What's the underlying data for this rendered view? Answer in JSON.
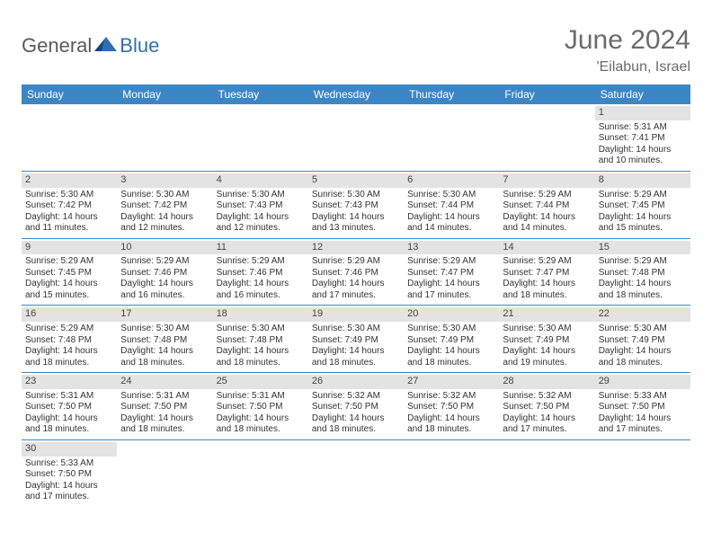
{
  "brand": {
    "general": "General",
    "blue": "Blue"
  },
  "title": "June 2024",
  "location": "'Eilabun, Israel",
  "colors": {
    "header_bar": "#3d86c6",
    "daynum_bg": "#e3e3e3",
    "text": "#333333",
    "title_text": "#6b6b6b",
    "logo_gray": "#5a5a5a",
    "logo_blue": "#2f6fad",
    "divider": "#3d86c6",
    "background": "#ffffff"
  },
  "typography": {
    "title_fontsize": 30,
    "location_fontsize": 16,
    "dow_fontsize": 12,
    "daynum_fontsize": 11,
    "cell_fontsize": 10
  },
  "dow": [
    "Sunday",
    "Monday",
    "Tuesday",
    "Wednesday",
    "Thursday",
    "Friday",
    "Saturday"
  ],
  "weeks": [
    [
      null,
      null,
      null,
      null,
      null,
      null,
      {
        "n": "1",
        "sr": "Sunrise: 5:31 AM",
        "ss": "Sunset: 7:41 PM",
        "d1": "Daylight: 14 hours",
        "d2": "and 10 minutes."
      }
    ],
    [
      {
        "n": "2",
        "sr": "Sunrise: 5:30 AM",
        "ss": "Sunset: 7:42 PM",
        "d1": "Daylight: 14 hours",
        "d2": "and 11 minutes."
      },
      {
        "n": "3",
        "sr": "Sunrise: 5:30 AM",
        "ss": "Sunset: 7:42 PM",
        "d1": "Daylight: 14 hours",
        "d2": "and 12 minutes."
      },
      {
        "n": "4",
        "sr": "Sunrise: 5:30 AM",
        "ss": "Sunset: 7:43 PM",
        "d1": "Daylight: 14 hours",
        "d2": "and 12 minutes."
      },
      {
        "n": "5",
        "sr": "Sunrise: 5:30 AM",
        "ss": "Sunset: 7:43 PM",
        "d1": "Daylight: 14 hours",
        "d2": "and 13 minutes."
      },
      {
        "n": "6",
        "sr": "Sunrise: 5:30 AM",
        "ss": "Sunset: 7:44 PM",
        "d1": "Daylight: 14 hours",
        "d2": "and 14 minutes."
      },
      {
        "n": "7",
        "sr": "Sunrise: 5:29 AM",
        "ss": "Sunset: 7:44 PM",
        "d1": "Daylight: 14 hours",
        "d2": "and 14 minutes."
      },
      {
        "n": "8",
        "sr": "Sunrise: 5:29 AM",
        "ss": "Sunset: 7:45 PM",
        "d1": "Daylight: 14 hours",
        "d2": "and 15 minutes."
      }
    ],
    [
      {
        "n": "9",
        "sr": "Sunrise: 5:29 AM",
        "ss": "Sunset: 7:45 PM",
        "d1": "Daylight: 14 hours",
        "d2": "and 15 minutes."
      },
      {
        "n": "10",
        "sr": "Sunrise: 5:29 AM",
        "ss": "Sunset: 7:46 PM",
        "d1": "Daylight: 14 hours",
        "d2": "and 16 minutes."
      },
      {
        "n": "11",
        "sr": "Sunrise: 5:29 AM",
        "ss": "Sunset: 7:46 PM",
        "d1": "Daylight: 14 hours",
        "d2": "and 16 minutes."
      },
      {
        "n": "12",
        "sr": "Sunrise: 5:29 AM",
        "ss": "Sunset: 7:46 PM",
        "d1": "Daylight: 14 hours",
        "d2": "and 17 minutes."
      },
      {
        "n": "13",
        "sr": "Sunrise: 5:29 AM",
        "ss": "Sunset: 7:47 PM",
        "d1": "Daylight: 14 hours",
        "d2": "and 17 minutes."
      },
      {
        "n": "14",
        "sr": "Sunrise: 5:29 AM",
        "ss": "Sunset: 7:47 PM",
        "d1": "Daylight: 14 hours",
        "d2": "and 18 minutes."
      },
      {
        "n": "15",
        "sr": "Sunrise: 5:29 AM",
        "ss": "Sunset: 7:48 PM",
        "d1": "Daylight: 14 hours",
        "d2": "and 18 minutes."
      }
    ],
    [
      {
        "n": "16",
        "sr": "Sunrise: 5:29 AM",
        "ss": "Sunset: 7:48 PM",
        "d1": "Daylight: 14 hours",
        "d2": "and 18 minutes."
      },
      {
        "n": "17",
        "sr": "Sunrise: 5:30 AM",
        "ss": "Sunset: 7:48 PM",
        "d1": "Daylight: 14 hours",
        "d2": "and 18 minutes."
      },
      {
        "n": "18",
        "sr": "Sunrise: 5:30 AM",
        "ss": "Sunset: 7:48 PM",
        "d1": "Daylight: 14 hours",
        "d2": "and 18 minutes."
      },
      {
        "n": "19",
        "sr": "Sunrise: 5:30 AM",
        "ss": "Sunset: 7:49 PM",
        "d1": "Daylight: 14 hours",
        "d2": "and 18 minutes."
      },
      {
        "n": "20",
        "sr": "Sunrise: 5:30 AM",
        "ss": "Sunset: 7:49 PM",
        "d1": "Daylight: 14 hours",
        "d2": "and 18 minutes."
      },
      {
        "n": "21",
        "sr": "Sunrise: 5:30 AM",
        "ss": "Sunset: 7:49 PM",
        "d1": "Daylight: 14 hours",
        "d2": "and 19 minutes."
      },
      {
        "n": "22",
        "sr": "Sunrise: 5:30 AM",
        "ss": "Sunset: 7:49 PM",
        "d1": "Daylight: 14 hours",
        "d2": "and 18 minutes."
      }
    ],
    [
      {
        "n": "23",
        "sr": "Sunrise: 5:31 AM",
        "ss": "Sunset: 7:50 PM",
        "d1": "Daylight: 14 hours",
        "d2": "and 18 minutes."
      },
      {
        "n": "24",
        "sr": "Sunrise: 5:31 AM",
        "ss": "Sunset: 7:50 PM",
        "d1": "Daylight: 14 hours",
        "d2": "and 18 minutes."
      },
      {
        "n": "25",
        "sr": "Sunrise: 5:31 AM",
        "ss": "Sunset: 7:50 PM",
        "d1": "Daylight: 14 hours",
        "d2": "and 18 minutes."
      },
      {
        "n": "26",
        "sr": "Sunrise: 5:32 AM",
        "ss": "Sunset: 7:50 PM",
        "d1": "Daylight: 14 hours",
        "d2": "and 18 minutes."
      },
      {
        "n": "27",
        "sr": "Sunrise: 5:32 AM",
        "ss": "Sunset: 7:50 PM",
        "d1": "Daylight: 14 hours",
        "d2": "and 18 minutes."
      },
      {
        "n": "28",
        "sr": "Sunrise: 5:32 AM",
        "ss": "Sunset: 7:50 PM",
        "d1": "Daylight: 14 hours",
        "d2": "and 17 minutes."
      },
      {
        "n": "29",
        "sr": "Sunrise: 5:33 AM",
        "ss": "Sunset: 7:50 PM",
        "d1": "Daylight: 14 hours",
        "d2": "and 17 minutes."
      }
    ],
    [
      {
        "n": "30",
        "sr": "Sunrise: 5:33 AM",
        "ss": "Sunset: 7:50 PM",
        "d1": "Daylight: 14 hours",
        "d2": "and 17 minutes."
      },
      null,
      null,
      null,
      null,
      null,
      null
    ]
  ]
}
